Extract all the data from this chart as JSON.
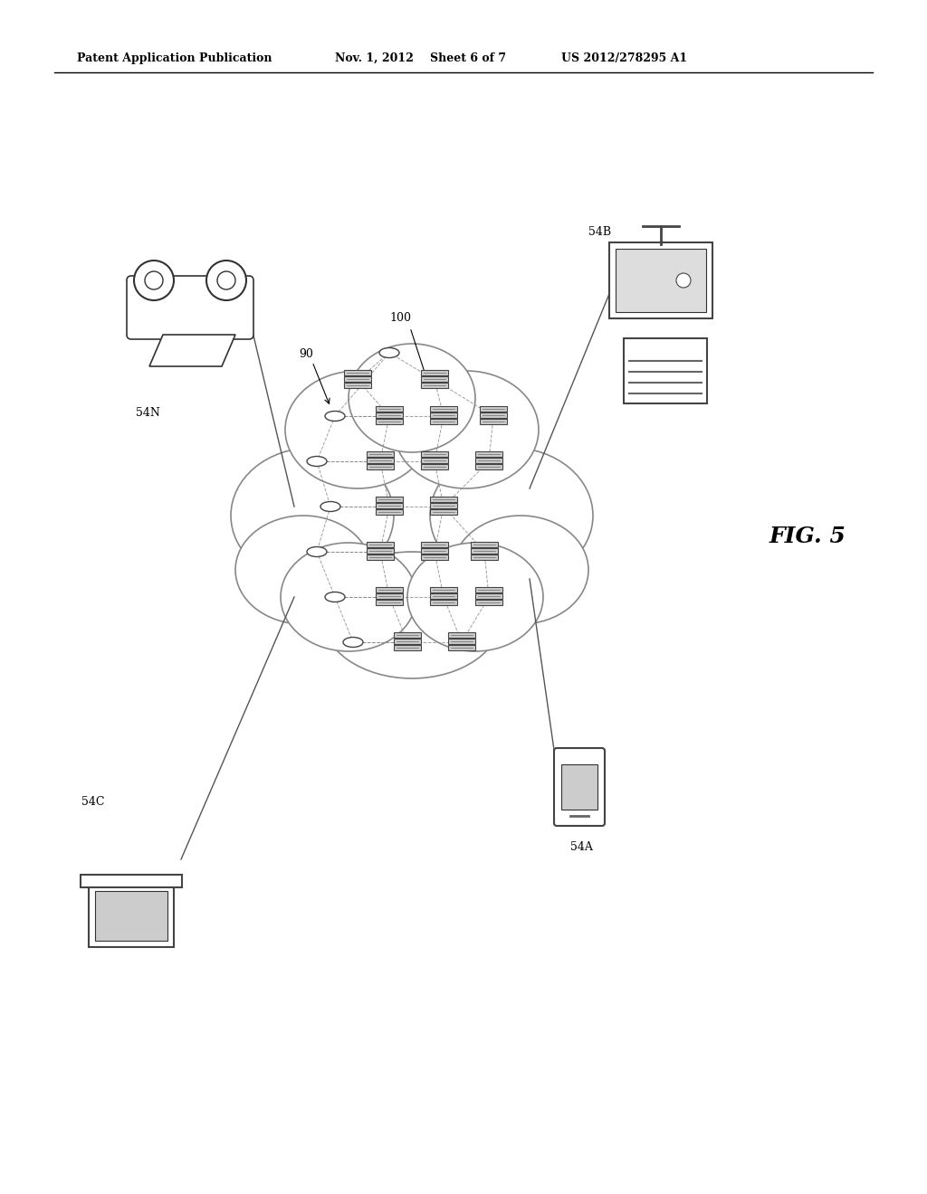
{
  "bg_color": "#ffffff",
  "header_text": "Patent Application Publication",
  "header_date": "Nov. 1, 2012",
  "header_sheet": "Sheet 6 of 7",
  "header_patent": "US 2012/278295 A1",
  "fig_label": "FIG. 5",
  "labels": {
    "cloud": "90",
    "network": "100",
    "car": "54N",
    "desktop_B": "54B",
    "laptop": "54C",
    "phone": "54A"
  }
}
